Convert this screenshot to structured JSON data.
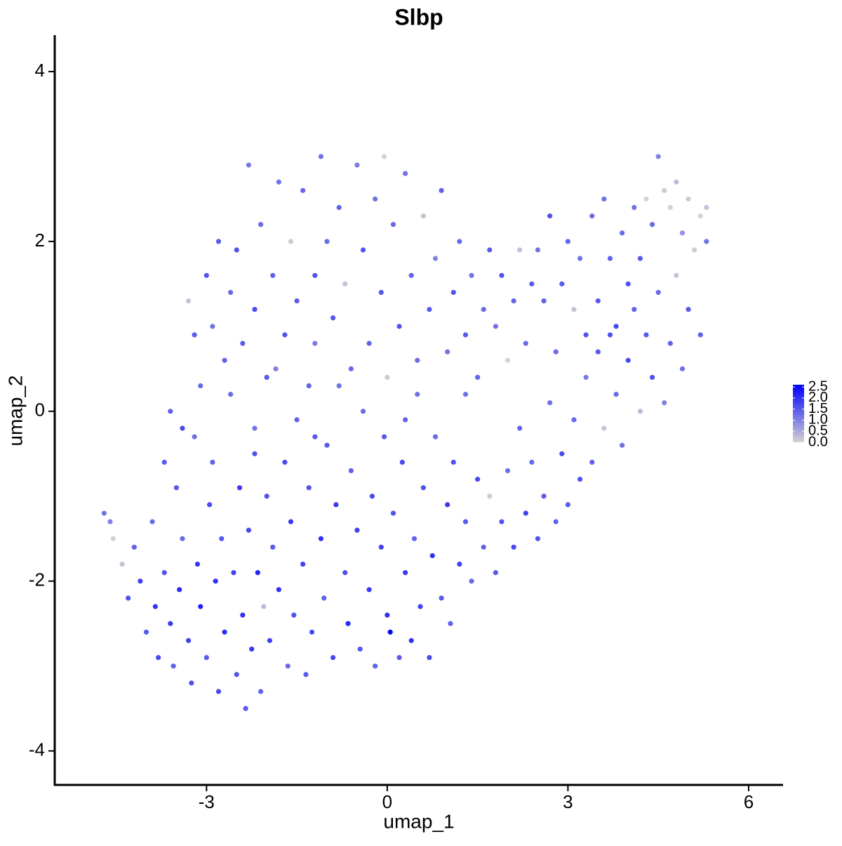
{
  "chart_data": {
    "type": "scatter",
    "title": "Slbp",
    "xlabel": "umap_1",
    "ylabel": "umap_2",
    "xlim": [
      -5.52,
      6.56
    ],
    "ylim": [
      -4.4,
      4.43
    ],
    "xticks": [
      -3,
      0,
      3,
      6
    ],
    "yticks": [
      -4,
      -2,
      0,
      2,
      4
    ],
    "color_scale": {
      "low": "#d3d3d3",
      "high": "#0000ff",
      "lim": [
        0,
        2.6
      ],
      "ticks": [
        {
          "value": 0,
          "label": "0.0"
        },
        {
          "value": 0.5,
          "label": "0.5"
        },
        {
          "value": 1,
          "label": "1.0"
        },
        {
          "value": 1.5,
          "label": "1.5"
        },
        {
          "value": 2,
          "label": "2.0"
        },
        {
          "value": 2.5,
          "label": "2.5"
        }
      ]
    },
    "x": [
      -4.7,
      -4.6,
      -4.55,
      -4.4,
      -4.3,
      -4.2,
      -4.1,
      -4.0,
      -3.9,
      -3.85,
      -3.8,
      -3.7,
      -3.6,
      -3.55,
      -3.5,
      -3.45,
      -3.4,
      -3.3,
      -3.25,
      -3.2,
      -3.15,
      -3.1,
      -3.0,
      -2.95,
      -2.9,
      -2.85,
      -2.8,
      -2.75,
      -2.7,
      -2.6,
      -2.55,
      -2.5,
      -2.45,
      -2.4,
      -2.35,
      -2.3,
      -2.25,
      -2.2,
      -2.15,
      -2.1,
      -2.05,
      -2.0,
      -1.95,
      -1.9,
      -1.85,
      -1.8,
      -1.7,
      -1.65,
      -1.6,
      -1.55,
      -1.5,
      -1.4,
      -1.35,
      -1.3,
      -1.25,
      -1.2,
      -1.1,
      -1.05,
      -1.0,
      -0.9,
      -0.85,
      -0.8,
      -0.7,
      -0.65,
      -0.6,
      -0.5,
      -0.45,
      -0.4,
      -0.3,
      -0.25,
      -0.2,
      -0.1,
      -0.05,
      0.0,
      0.05,
      0.1,
      0.2,
      0.25,
      0.3,
      0.4,
      0.45,
      0.5,
      0.55,
      0.6,
      0.7,
      0.75,
      0.8,
      0.9,
      1.0,
      1.05,
      1.1,
      1.2,
      1.3,
      1.4,
      1.5,
      1.6,
      1.7,
      1.8,
      1.9,
      2.0,
      2.1,
      2.2,
      2.3,
      2.4,
      2.5,
      2.6,
      2.7,
      2.8,
      2.9,
      3.0,
      3.1,
      3.2,
      3.3,
      3.4,
      3.5,
      3.6,
      3.7,
      3.8,
      3.9,
      4.0,
      4.1,
      4.2,
      4.3,
      4.4,
      4.5,
      4.6,
      4.7,
      4.8,
      4.9,
      5.0,
      5.1,
      5.2,
      5.3,
      5.3,
      5.2,
      5.0,
      4.9,
      4.8,
      4.7,
      4.6,
      4.5,
      4.4,
      4.3,
      4.2,
      4.1,
      4.0,
      3.9,
      3.8,
      3.7,
      3.6,
      3.5,
      3.4,
      3.3,
      3.2,
      3.1,
      3.0,
      2.9,
      2.8,
      2.7,
      2.6,
      2.5,
      2.4,
      2.3,
      2.2,
      2.1,
      2.0,
      1.9,
      1.8,
      1.7,
      1.6,
      1.5,
      1.4,
      1.3,
      1.2,
      1.1,
      1.0,
      0.9,
      0.8,
      0.7,
      0.6,
      0.5,
      0.4,
      0.3,
      0.2,
      0.1,
      0.0,
      -0.05,
      -0.1,
      -0.2,
      -0.3,
      -0.4,
      -0.5,
      -0.6,
      -0.7,
      -0.8,
      -0.9,
      -1.0,
      -1.1,
      -1.2,
      -1.3,
      -1.4,
      -1.5,
      -1.6,
      -1.7,
      -1.8,
      -1.9,
      -2.0,
      -2.1,
      -2.2,
      -2.3,
      -2.4,
      -2.5,
      -2.6,
      -2.7,
      -2.8,
      -2.9,
      -3.0,
      -3.1,
      -3.2,
      -3.3,
      -3.4,
      -3.6,
      -3.7,
      -2.2,
      -1.2,
      0.3,
      1.3
    ],
    "values": [
      -1.2,
      -1.3,
      -1.5,
      -1.8,
      -2.2,
      -1.6,
      -2.0,
      -2.6,
      -1.3,
      -2.3,
      -2.9,
      -1.9,
      -2.5,
      -3.0,
      -0.9,
      -2.1,
      -1.5,
      -2.7,
      -3.2,
      -0.3,
      -1.8,
      -2.3,
      -2.9,
      -1.1,
      -0.6,
      -2.0,
      -3.3,
      -1.5,
      -2.6,
      0.2,
      -1.9,
      -3.1,
      -0.9,
      -2.4,
      -3.5,
      -1.4,
      -2.8,
      -0.2,
      -1.9,
      -3.3,
      -2.3,
      -1.0,
      -2.7,
      -1.6,
      0.5,
      -2.1,
      -0.6,
      -3.0,
      -1.3,
      -2.4,
      -0.1,
      -1.8,
      -3.1,
      -0.9,
      -2.6,
      0.8,
      -1.5,
      -2.2,
      -0.4,
      -2.9,
      -1.1,
      0.3,
      -1.9,
      -2.5,
      -0.7,
      -1.4,
      -2.8,
      0.0,
      -2.1,
      -1.0,
      -3.0,
      -1.6,
      -0.3,
      -2.4,
      -2.6,
      -1.2,
      -2.9,
      -0.6,
      -1.9,
      -2.7,
      -1.5,
      0.2,
      -2.3,
      -0.9,
      -2.9,
      -1.7,
      -0.3,
      -2.2,
      -1.1,
      -2.5,
      -0.6,
      -1.8,
      -1.3,
      -2.0,
      -0.8,
      -1.6,
      -1.0,
      -1.9,
      -1.3,
      -0.7,
      -1.6,
      -0.2,
      -1.2,
      -0.6,
      -1.5,
      -1.0,
      0.1,
      -1.3,
      -0.5,
      -1.1,
      -0.1,
      -0.8,
      0.4,
      -0.6,
      0.7,
      -0.2,
      0.9,
      0.2,
      -0.4,
      0.6,
      1.2,
      0.0,
      0.9,
      0.4,
      1.4,
      0.1,
      0.8,
      1.6,
      0.5,
      1.2,
      1.9,
      0.9,
      2.0,
      2.4,
      2.3,
      2.5,
      2.1,
      2.7,
      2.4,
      2.6,
      3.0,
      2.2,
      2.5,
      1.8,
      2.4,
      1.5,
      2.1,
      1.0,
      1.8,
      2.5,
      1.3,
      2.3,
      0.9,
      1.8,
      1.2,
      2.0,
      1.5,
      0.7,
      2.3,
      1.3,
      1.9,
      1.5,
      0.8,
      1.9,
      1.3,
      0.6,
      1.6,
      1.0,
      1.9,
      1.2,
      0.4,
      1.6,
      0.9,
      2.0,
      1.4,
      0.7,
      2.6,
      1.8,
      1.2,
      2.3,
      0.6,
      1.6,
      2.8,
      1.0,
      2.2,
      0.4,
      3.0,
      1.4,
      2.5,
      0.8,
      1.9,
      2.9,
      0.5,
      1.5,
      2.4,
      1.1,
      2.0,
      3.0,
      1.6,
      0.3,
      2.6,
      1.3,
      2.0,
      0.9,
      2.7,
      1.6,
      0.4,
      2.2,
      1.2,
      2.9,
      0.8,
      1.9,
      1.4,
      0.6,
      2.0,
      1.0,
      1.6,
      0.3,
      0.9,
      1.3,
      -0.2,
      0.0,
      -0.6,
      -0.5,
      -0.3,
      -0.1,
      0.2
    ],
    "expression": [
      1.2,
      1.0,
      0,
      0.2,
      1.6,
      1.4,
      1.8,
      1.5,
      1.3,
      2.0,
      1.7,
      1.6,
      1.9,
      1.4,
      1.5,
      2.1,
      1.3,
      1.8,
      1.6,
      1.2,
      1.9,
      2.2,
      1.5,
      1.7,
      1.4,
      2.0,
      1.7,
      1.5,
      2.1,
      1.3,
      1.8,
      1.6,
      1.9,
      2.0,
      1.5,
      1.7,
      1.9,
      1.2,
      2.2,
      1.4,
      0.3,
      1.6,
      1.8,
      1.5,
      1.0,
      2.0,
      1.7,
      1.3,
      1.9,
      1.6,
      1.4,
      1.8,
      1.5,
      1.6,
      1.7,
      1.1,
      2.0,
      1.4,
      1.5,
      1.7,
      1.9,
      1.2,
      1.6,
      2.1,
      1.4,
      1.8,
      1.5,
      1.3,
      1.9,
      1.7,
      1.4,
      1.8,
      1.5,
      2.0,
      2.6,
      1.6,
      1.5,
      1.7,
      1.9,
      2.0,
      1.4,
      1.2,
      1.8,
      1.6,
      1.7,
      2.0,
      1.3,
      1.5,
      1.9,
      1.4,
      1.6,
      1.8,
      1.5,
      1.3,
      1.7,
      1.4,
      0.1,
      1.5,
      1.6,
      1.2,
      1.7,
      1.4,
      1.8,
      1.3,
      1.6,
      1.5,
      1.2,
      1.4,
      1.7,
      1.5,
      1.3,
      1.6,
      1.1,
      1.4,
      1.5,
      0.2,
      1.6,
      1.3,
      1.2,
      1.7,
      1.4,
      0.3,
      1.5,
      1.6,
      1.3,
      1.0,
      1.4,
      0.2,
      1.2,
      1.5,
      0.1,
      1.4,
      1.2,
      0.2,
      0,
      0.1,
      0.8,
      0.3,
      0,
      0.1,
      1.0,
      1.3,
      0,
      1.5,
      1.2,
      1.6,
      1.3,
      1.7,
      1.4,
      1.2,
      1.5,
      1.3,
      1.6,
      1.2,
      0.2,
      1.4,
      1.5,
      1.3,
      1.6,
      1.4,
      1.2,
      1.5,
      1.3,
      0.2,
      1.4,
      0,
      1.6,
      1.2,
      1.5,
      1.3,
      1.4,
      1.2,
      1.5,
      1.3,
      1.6,
      1.2,
      1.4,
      1.0,
      1.5,
      0.2,
      1.3,
      1.4,
      1.2,
      1.6,
      1.3,
      0.1,
      0,
      1.5,
      1.2,
      1.4,
      1.6,
      1.1,
      1.3,
      0.2,
      1.4,
      1.5,
      1.3,
      1.2,
      1.6,
      1.4,
      1.3,
      1.5,
      0.1,
      1.6,
      1.2,
      1.4,
      1.5,
      1.3,
      1.7,
      1.1,
      1.5,
      1.6,
      1.3,
      1.4,
      1.5,
      1.2,
      1.6,
      1.3,
      1.5,
      0.2,
      1.7,
      1.4,
      1.5,
      1.6,
      1.5,
      1.4,
      1.2
    ]
  }
}
